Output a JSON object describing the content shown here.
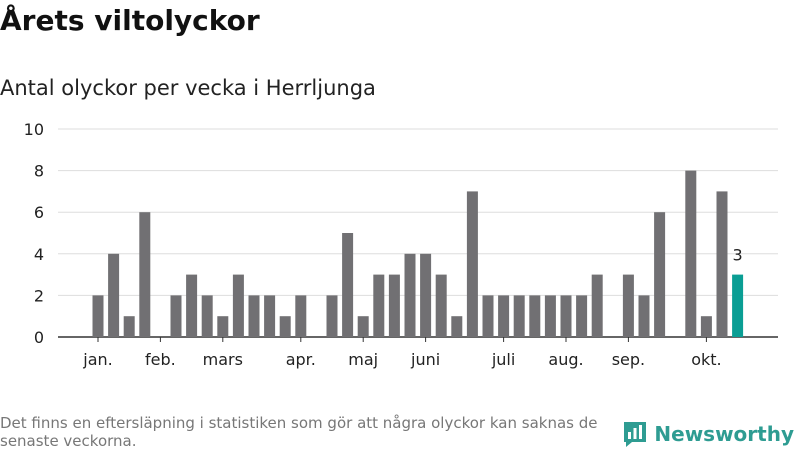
{
  "title": "Årets viltolyckor",
  "subtitle": "Antal olyckor per vecka i Herrljunga",
  "footnote": "Det finns en eftersläpning i statistiken som gör att några olyckor kan saknas de senaste veckorna.",
  "brand": {
    "name": "Newsworthy",
    "color": "#2e9c92",
    "logo_icon": "bar-chart-icon"
  },
  "colors": {
    "bar": "#717073",
    "highlight": "#0a9e94",
    "grid": "#dddddd",
    "axis": "#333333"
  },
  "chart_data": {
    "type": "bar",
    "x": [
      "1",
      "2",
      "3",
      "4",
      "5",
      "6",
      "7",
      "8",
      "9",
      "10",
      "11",
      "12",
      "13",
      "14",
      "15",
      "16",
      "17",
      "18",
      "19",
      "20",
      "21",
      "22",
      "23",
      "24",
      "25",
      "26",
      "27",
      "28",
      "29",
      "30",
      "31",
      "32",
      "33",
      "34",
      "35",
      "36",
      "37",
      "38",
      "39",
      "40",
      "41",
      "42",
      "43"
    ],
    "values": [
      2,
      4,
      1,
      6,
      0,
      2,
      3,
      2,
      1,
      3,
      2,
      2,
      1,
      2,
      0,
      2,
      5,
      1,
      3,
      3,
      4,
      4,
      3,
      1,
      7,
      2,
      2,
      2,
      2,
      2,
      2,
      2,
      3,
      0,
      3,
      2,
      6,
      0,
      8,
      1,
      7,
      3,
      0
    ],
    "highlight_index": 41,
    "highlight_label": "3",
    "month_labels": [
      {
        "label": "jan.",
        "week": 1
      },
      {
        "label": "feb.",
        "week": 5
      },
      {
        "label": "mars",
        "week": 9
      },
      {
        "label": "apr.",
        "week": 14
      },
      {
        "label": "maj",
        "week": 18
      },
      {
        "label": "juni",
        "week": 22
      },
      {
        "label": "juli",
        "week": 27
      },
      {
        "label": "aug.",
        "week": 31
      },
      {
        "label": "sep.",
        "week": 35
      },
      {
        "label": "okt.",
        "week": 40
      }
    ],
    "yticks": [
      "0",
      "2",
      "4",
      "6",
      "8",
      "10"
    ],
    "ylim": [
      0,
      10
    ],
    "grid": true,
    "legend": "none"
  }
}
